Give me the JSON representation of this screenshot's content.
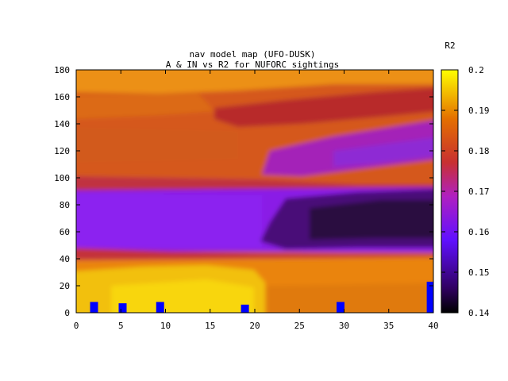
{
  "chart_data": {
    "type": "heatmap",
    "title": "nav model map (UFO-DUSK)",
    "subtitle": "A & IN vs R2 for NUFORC sightings",
    "xlabel": "",
    "ylabel": "",
    "colorbar_label": "R2",
    "xlim": [
      0,
      40
    ],
    "ylim": [
      0,
      180
    ],
    "zlim": [
      0.14,
      0.2
    ],
    "x_ticks": [
      "0",
      "5",
      "10",
      "15",
      "20",
      "25",
      "30",
      "35",
      "40"
    ],
    "y_ticks": [
      "0",
      "20",
      "40",
      "60",
      "80",
      "100",
      "120",
      "140",
      "160",
      "180"
    ],
    "z_ticks": [
      "0.14",
      "0.15",
      "0.16",
      "0.17",
      "0.18",
      "0.19",
      "0.2"
    ],
    "grid": false,
    "palette": "black-blue-purple-red-orange-yellow",
    "regions": [
      {
        "name": "top band",
        "y": [
          160,
          180
        ],
        "x": [
          0,
          40
        ],
        "r2": 0.185
      },
      {
        "name": "upper-right dark band",
        "y": [
          140,
          165
        ],
        "x": [
          18,
          40
        ],
        "r2": 0.174
      },
      {
        "name": "band 100-160",
        "y": [
          100,
          160
        ],
        "x": [
          0,
          40
        ],
        "r2": 0.178
      },
      {
        "name": "purple wedge",
        "y": [
          95,
          130
        ],
        "x": [
          25,
          40
        ],
        "r2": 0.168
      },
      {
        "name": "violet band",
        "y": [
          45,
          90
        ],
        "x": [
          0,
          40
        ],
        "r2": 0.158
      },
      {
        "name": "dark pocket",
        "y": [
          50,
          88
        ],
        "x": [
          22,
          40
        ],
        "r2": 0.147
      },
      {
        "name": "red strip",
        "y": [
          40,
          50
        ],
        "x": [
          0,
          20
        ],
        "r2": 0.172
      },
      {
        "name": "orange band",
        "y": [
          20,
          42
        ],
        "x": [
          0,
          40
        ],
        "r2": 0.183
      },
      {
        "name": "yellow region",
        "y": [
          0,
          35
        ],
        "x": [
          0,
          21
        ],
        "r2": 0.193
      },
      {
        "name": "bottom-right orange",
        "y": [
          0,
          20
        ],
        "x": [
          21,
          40
        ],
        "r2": 0.182
      }
    ],
    "markers": [
      {
        "x": 2,
        "y_min": 0,
        "y_max": 8
      },
      {
        "x": 5.2,
        "y_min": 0,
        "y_max": 7
      },
      {
        "x": 9.4,
        "y_min": 0,
        "y_max": 8
      },
      {
        "x": 18.9,
        "y_min": 0,
        "y_max": 6
      },
      {
        "x": 29.6,
        "y_min": 0,
        "y_max": 8
      },
      {
        "x": 39.7,
        "y_min": 0,
        "y_max": 23
      }
    ],
    "marker_color": "#0000ff"
  }
}
